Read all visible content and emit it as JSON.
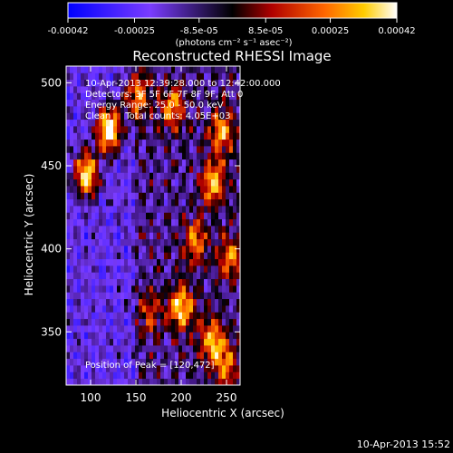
{
  "chart_data": {
    "type": "heatmap",
    "title": "Reconstructed RHESSI Image",
    "xlabel": "Heliocentric X (arcsec)",
    "ylabel": "Heliocentric Y (arcsec)",
    "xlim": [
      73,
      265
    ],
    "ylim": [
      318,
      510
    ],
    "xticks": [
      100,
      150,
      200,
      250
    ],
    "yticks": [
      350,
      400,
      450,
      500
    ],
    "colorbar": {
      "ticks": [
        -0.00042,
        -0.00025,
        -8.5e-05,
        8.5e-05,
        0.00025,
        0.00042
      ],
      "tick_labels": [
        "-0.00042",
        "-0.00025",
        "-8.5e-05",
        "8.5e-05",
        "0.00025",
        "0.00042"
      ],
      "range": [
        -0.00042,
        0.00042
      ],
      "units_label": "(photons cm⁻² s⁻¹ asec⁻²)"
    },
    "annotations": [
      "10-Apr-2013 12:39:28.000 to 12:42:00.000",
      "Detectors: 3F 5F 6F 7F 8F 9F, Att 0",
      "Energy Range: 25.0 - 50.0 keV",
      "Clean     Total counts: 4.05E+03"
    ],
    "peak_label": "Position of Peak = [120,472]",
    "peak": [
      120,
      472
    ],
    "sources": [
      {
        "x": 120,
        "y": 472,
        "intensity": 1.0
      },
      {
        "x": 95,
        "y": 445,
        "intensity": 0.85
      },
      {
        "x": 150,
        "y": 492,
        "intensity": 0.6
      },
      {
        "x": 190,
        "y": 485,
        "intensity": 0.55
      },
      {
        "x": 235,
        "y": 440,
        "intensity": 0.6
      },
      {
        "x": 245,
        "y": 470,
        "intensity": 0.55
      },
      {
        "x": 215,
        "y": 405,
        "intensity": 0.5
      },
      {
        "x": 200,
        "y": 365,
        "intensity": 0.7
      },
      {
        "x": 235,
        "y": 345,
        "intensity": 0.6
      },
      {
        "x": 255,
        "y": 395,
        "intensity": 0.5
      },
      {
        "x": 165,
        "y": 360,
        "intensity": 0.35
      },
      {
        "x": 250,
        "y": 330,
        "intensity": 0.45
      }
    ],
    "background_level": -0.45
  },
  "footer": {
    "timestamp": "10-Apr-2013 15:52"
  }
}
